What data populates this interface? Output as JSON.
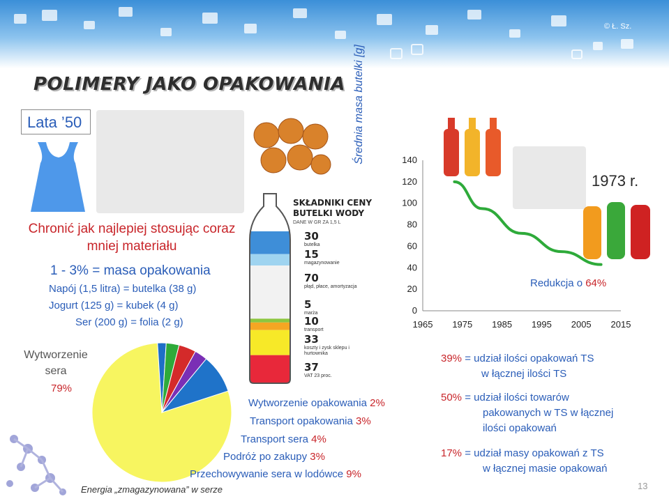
{
  "copyright": "© Ł. Sz.",
  "title": "POLIMERY JAKO OPAKOWANIA",
  "era": "Lata ’50",
  "slogan": [
    "Chronić jak najlepiej stosując coraz",
    "mniej materiału"
  ],
  "mass_header": "1 - 3%  =  masa opakowania",
  "mass_rows": [
    {
      "label": "Napój (1,5 litra)  =  butelka (38 g)"
    },
    {
      "label": "Jogurt (125 g)  =  kubek (4 g)"
    },
    {
      "label": "Ser (200 g)  =  folia (2 g)"
    }
  ],
  "pie": {
    "label_line1": "Wytworzenie",
    "label_line2": "sera",
    "main_pct": "79%",
    "legend": [
      {
        "text": "Wytworzenie opakowania",
        "pct": "2%"
      },
      {
        "text": "Transport  opakowania",
        "pct": "3%"
      },
      {
        "text": "Transport  sera",
        "pct": "4%"
      },
      {
        "text": "Podróż po zakupy",
        "pct": "3%"
      },
      {
        "text": "Przechowywanie  sera w lodówce",
        "pct": "9%"
      }
    ],
    "energy_note": "Energia „zmagazynowana” w serze",
    "colors": {
      "cheese": "#f7f560",
      "pack_make": "#1e6fc7",
      "pack_transport": "#2eaa3a",
      "cheese_transport": "#d42a2a",
      "shopping": "#7a2fb5",
      "fridge": "#1f73c9"
    }
  },
  "bottle": {
    "header": [
      "SKŁADNIKI CENY",
      "BUTELKI WODY"
    ],
    "note": "DANE W GR ZA 1,5 L",
    "items": [
      {
        "value": "30",
        "label": "butelka",
        "color": "#3e8ed8"
      },
      {
        "value": "15",
        "label": "magazynowanie",
        "color": "#9fd4f0"
      },
      {
        "value": "70",
        "label": "płąd, płace, amortyzacja",
        "color": "#f2f2f2"
      },
      {
        "value": "5",
        "label": "marża",
        "color": "#8dc640"
      },
      {
        "value": "10",
        "label": "transport",
        "color": "#f5a623"
      },
      {
        "value": "33",
        "label": "koszty i zysk sklepu i hurtownika",
        "color": "#f7e928"
      },
      {
        "value": "37",
        "label": "VAT 23 proc.",
        "color": "#e8283a"
      }
    ]
  },
  "chart_data": {
    "type": "line",
    "title": "",
    "xlabel": "",
    "ylabel": "Średnia masa butelki [g]",
    "x": [
      1973,
      1980,
      1990,
      2000,
      2010
    ],
    "y": [
      120,
      95,
      72,
      55,
      43
    ],
    "xticks": [
      "1965",
      "1975",
      "1985",
      "1995",
      "2005",
      "2015"
    ],
    "yticks": [
      "0",
      "20",
      "40",
      "60",
      "80",
      "100",
      "120",
      "140"
    ],
    "xlim": [
      1965,
      2015
    ],
    "ylim": [
      0,
      140
    ],
    "line_color": "#2eaa3a",
    "grid": false
  },
  "year_label": "1973 r.",
  "reduction": {
    "text": "Redukcja o",
    "pct": "64%"
  },
  "stats": [
    {
      "pct": "39%",
      "line1": "=  udział ilości opakowań TS",
      "line2": "w łącznej ilości TS"
    },
    {
      "pct": "50%",
      "line1": "=  udział ilości towarów",
      "line2": "pakowanych  w TS w łącznej",
      "line3": "ilości opakowań"
    },
    {
      "pct": "17%",
      "line1": "=  udział masy opakowań z TS",
      "line2": "w łącznej masie opakowań"
    }
  ],
  "page_number": "13"
}
